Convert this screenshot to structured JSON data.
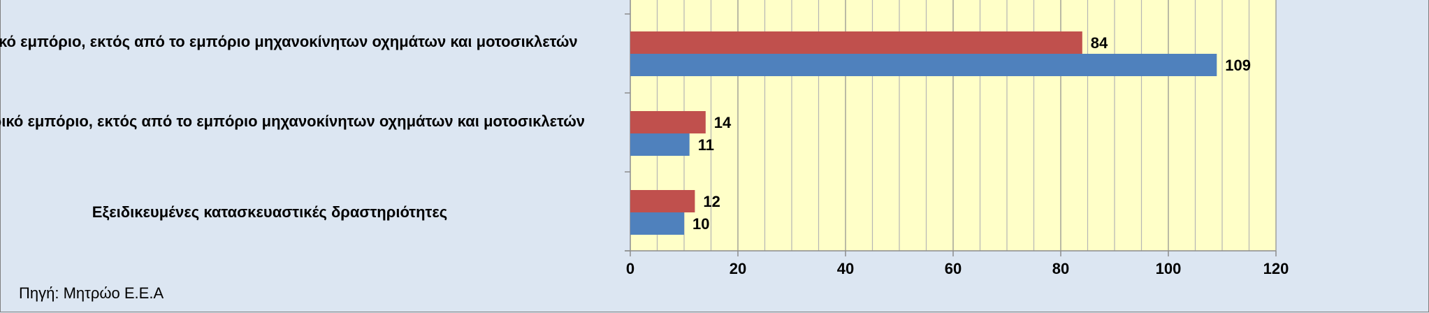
{
  "chart_data": {
    "type": "bar",
    "orientation": "horizontal",
    "categories": [
      "Λιανικό εμπόριο, εκτός από το εμπόριο μηχανοκίνητων οχημάτων και μοτοσικλετών",
      "Χονδρικό εμπόριο, εκτός από το εμπόριο μηχανοκίνητων οχημάτων και μοτοσικλετών",
      "Εξειδικευμένες κατασκευαστικές δραστηριότητες"
    ],
    "series": [
      {
        "color": "#c0504d",
        "values": [
          84,
          14,
          12
        ]
      },
      {
        "color": "#4f81bd",
        "values": [
          109,
          11,
          10
        ]
      }
    ],
    "xlim": [
      0,
      120
    ],
    "xticks": [
      "0",
      "20",
      "40",
      "60",
      "80",
      "100",
      "120"
    ],
    "grid": true,
    "plot_background": "#ffffc8"
  },
  "source_note": "Πηγή: Μητρώο Ε.Ε.Α"
}
